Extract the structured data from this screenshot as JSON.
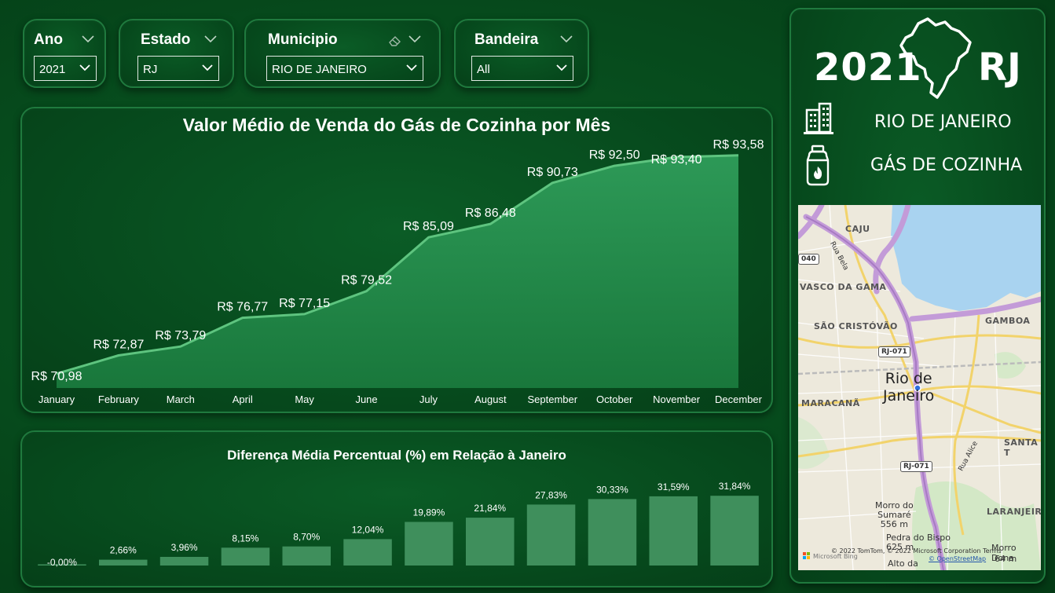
{
  "filters": {
    "ano": {
      "label": "Ano",
      "value": "2021"
    },
    "estado": {
      "label": "Estado",
      "value": "RJ"
    },
    "municipio": {
      "label": "Municipio",
      "value": "RIO DE JANEIRO"
    },
    "bandeira": {
      "label": "Bandeira",
      "value": "All"
    }
  },
  "side": {
    "year": "2021",
    "state": "RJ",
    "city": "RIO DE JANEIRO",
    "product": "GÁS DE COZINHA",
    "icons": [
      "brazil-map-icon",
      "building-icon",
      "gas-cylinder-icon"
    ]
  },
  "map": {
    "city_label": "Rio de\nJaneiro",
    "neighborhoods": [
      "CAJU",
      "VASCO DA GAMA",
      "SÃO CRISTÓVÃO",
      "GAMBOA",
      "MARACANÃ",
      "SANTA T",
      "LARANJEIR"
    ],
    "roads": [
      "Rua Bela",
      "Rua Alice",
      "RJ-071",
      "RJ-071",
      "040"
    ],
    "places": [
      "Morro do\nSumaré\n556 m",
      "Pedra do Bispo\n625 m",
      "Alto da",
      "Morro Dona",
      "64 m"
    ],
    "credits": "© 2022 TomTom, © 2022 Microsoft Corporation  Terms",
    "credits2": "© OpenStreetMap",
    "bing": "Microsoft Bing"
  },
  "chart_data": [
    {
      "type": "area",
      "title": "Valor Médio de Venda do Gás de Cozinha por Mês",
      "categories": [
        "January",
        "February",
        "March",
        "April",
        "May",
        "June",
        "July",
        "August",
        "September",
        "October",
        "November",
        "December"
      ],
      "values": [
        70.98,
        72.87,
        73.79,
        76.77,
        77.15,
        79.52,
        85.09,
        86.48,
        90.73,
        92.5,
        93.4,
        93.58
      ],
      "labels": [
        "R$ 70,98",
        "R$ 72,87",
        "R$ 73,79",
        "R$ 76,77",
        "R$ 77,15",
        "R$ 79,52",
        "R$ 85,09",
        "R$ 86,48",
        "R$ 90,73",
        "R$ 92,50",
        "R$ 93,40",
        "R$ 93,58"
      ],
      "label_position": [
        "below",
        "above",
        "above",
        "above",
        "above",
        "above",
        "above",
        "above",
        "above",
        "above",
        "below",
        "above"
      ],
      "ylim": [
        69.5,
        96
      ],
      "grid": false,
      "color": "#5ec47f"
    },
    {
      "type": "bar",
      "title": "Diferença Média Percentual (%) em Relação à Janeiro",
      "categories": [
        "January",
        "February",
        "March",
        "April",
        "May",
        "June",
        "July",
        "August",
        "September",
        "October",
        "November",
        "December"
      ],
      "values": [
        0.0,
        2.66,
        3.96,
        8.15,
        8.7,
        12.04,
        19.89,
        21.84,
        27.83,
        30.33,
        31.59,
        31.84
      ],
      "labels": [
        "-0,00%",
        "2,66%",
        "3,96%",
        "8,15%",
        "8,70%",
        "12,04%",
        "19,89%",
        "21,84%",
        "27,83%",
        "30,33%",
        "31,59%",
        "31,84%"
      ],
      "ylim": [
        0,
        33
      ],
      "grid": false,
      "color": "#3f8f5c"
    }
  ]
}
